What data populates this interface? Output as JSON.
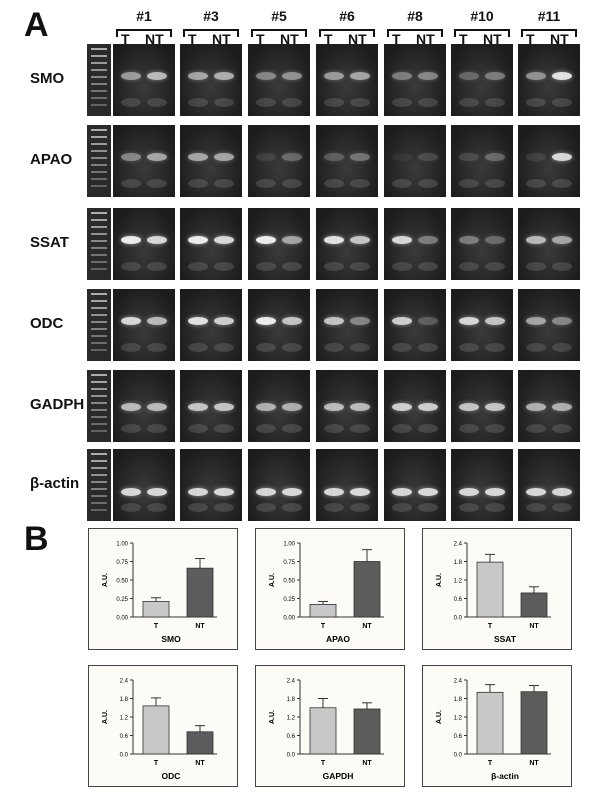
{
  "panel_a": {
    "letter": "A",
    "samples": [
      "#1",
      "#3",
      "#5",
      "#6",
      "#8",
      "#10",
      "#11"
    ],
    "lanes": [
      "T",
      "NT"
    ],
    "genes": [
      "SMO",
      "APAO",
      "SSAT",
      "ODC",
      "GADPH",
      "β-actin"
    ]
  },
  "panel_b": {
    "letter": "B"
  },
  "chart_data": [
    {
      "type": "bar",
      "title": "SMO",
      "ylabel": "A.U.",
      "categories": [
        "T",
        "NT"
      ],
      "values": [
        0.21,
        0.66
      ],
      "errors": [
        0.05,
        0.13
      ],
      "ylim": [
        0,
        1.0
      ],
      "ticks": [
        "0.00",
        "0.25",
        "0.50",
        "0.75",
        "1.00"
      ],
      "colors": [
        "#c8c8c8",
        "#5c5c5c"
      ]
    },
    {
      "type": "bar",
      "title": "APAO",
      "ylabel": "A.U.",
      "categories": [
        "T",
        "NT"
      ],
      "values": [
        0.17,
        0.75
      ],
      "errors": [
        0.04,
        0.16
      ],
      "ylim": [
        0,
        1.0
      ],
      "ticks": [
        "0.00",
        "0.25",
        "0.50",
        "0.75",
        "1.00"
      ],
      "colors": [
        "#c8c8c8",
        "#5c5c5c"
      ]
    },
    {
      "type": "bar",
      "title": "SSAT",
      "ylabel": "A.U.",
      "categories": [
        "T",
        "NT"
      ],
      "values": [
        1.78,
        0.78
      ],
      "errors": [
        0.25,
        0.2
      ],
      "ylim": [
        0,
        2.4
      ],
      "ticks": [
        "0.0",
        "0.6",
        "1.2",
        "1.8",
        "2.4"
      ],
      "colors": [
        "#c8c8c8",
        "#5c5c5c"
      ]
    },
    {
      "type": "bar",
      "title": "ODC",
      "ylabel": "A.U.",
      "categories": [
        "T",
        "NT"
      ],
      "values": [
        1.56,
        0.72
      ],
      "errors": [
        0.26,
        0.2
      ],
      "ylim": [
        0,
        2.4
      ],
      "ticks": [
        "0.0",
        "0.6",
        "1.2",
        "1.8",
        "2.4"
      ],
      "colors": [
        "#c8c8c8",
        "#5c5c5c"
      ]
    },
    {
      "type": "bar",
      "title": "GAPDH",
      "ylabel": "A.U.",
      "categories": [
        "T",
        "NT"
      ],
      "values": [
        1.5,
        1.46
      ],
      "errors": [
        0.3,
        0.2
      ],
      "ylim": [
        0,
        2.4
      ],
      "ticks": [
        "0.0",
        "0.6",
        "1.2",
        "1.8",
        "2.4"
      ],
      "colors": [
        "#c8c8c8",
        "#5c5c5c"
      ]
    },
    {
      "type": "bar",
      "title": "β-actin",
      "ylabel": "A.U.",
      "categories": [
        "T",
        "NT"
      ],
      "values": [
        2.0,
        2.02
      ],
      "errors": [
        0.25,
        0.2
      ],
      "ylim": [
        0,
        2.4
      ],
      "ticks": [
        "0.0",
        "0.6",
        "1.2",
        "1.8",
        "2.4"
      ],
      "colors": [
        "#c8c8c8",
        "#5c5c5c"
      ]
    }
  ]
}
